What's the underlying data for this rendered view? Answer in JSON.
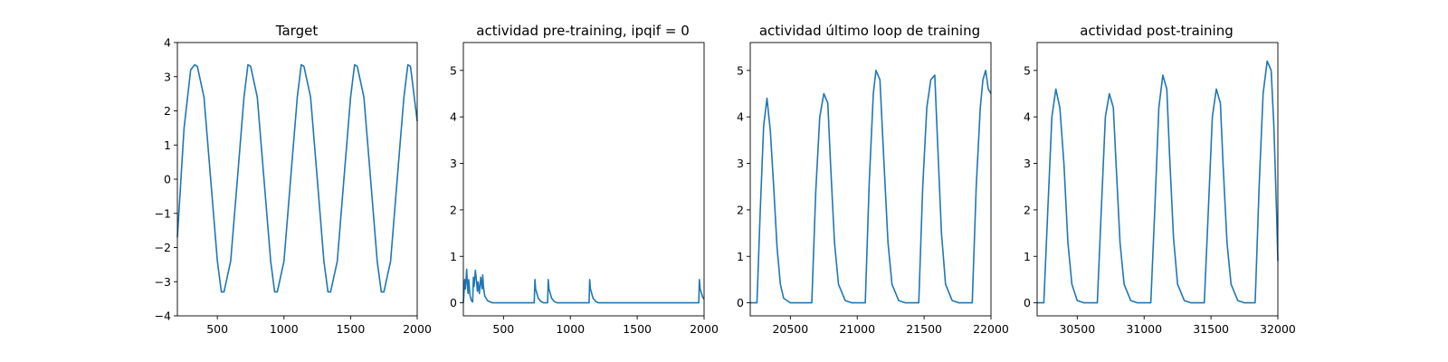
{
  "figure": {
    "background": "#ffffff",
    "line_color": "#1f77b4"
  },
  "chart_data": [
    {
      "type": "line",
      "title": "Target",
      "xlim": [
        200,
        2000
      ],
      "ylim": [
        -4,
        4
      ],
      "xticks": [
        500,
        1000,
        1500,
        2000
      ],
      "yticks": [
        -4,
        -3,
        -2,
        -1,
        0,
        1,
        2,
        3,
        4
      ],
      "ytick_labels": [
        "−4",
        "−3",
        "−2",
        "−1",
        "0",
        "1",
        "2",
        "3",
        "4"
      ],
      "series": [
        {
          "x": [
            200,
            250,
            300,
            330,
            350,
            400,
            450,
            500,
            530,
            550,
            600,
            650,
            700,
            730,
            750,
            800,
            850,
            900,
            930,
            950,
            1000,
            1050,
            1100,
            1130,
            1150,
            1200,
            1250,
            1300,
            1330,
            1350,
            1400,
            1450,
            1500,
            1530,
            1550,
            1600,
            1650,
            1700,
            1730,
            1750,
            1800,
            1850,
            1900,
            1930,
            1950,
            2000
          ],
          "y": [
            -1.7,
            1.5,
            3.2,
            3.35,
            3.3,
            2.4,
            0.0,
            -2.4,
            -3.3,
            -3.3,
            -2.4,
            0.0,
            2.4,
            3.35,
            3.3,
            2.4,
            0.0,
            -2.4,
            -3.3,
            -3.3,
            -2.4,
            0.0,
            2.4,
            3.35,
            3.3,
            2.4,
            0.0,
            -2.4,
            -3.3,
            -3.3,
            -2.4,
            0.0,
            2.4,
            3.35,
            3.3,
            2.4,
            0.0,
            -2.4,
            -3.3,
            -3.3,
            -2.4,
            0.0,
            2.4,
            3.35,
            3.3,
            1.7
          ]
        }
      ]
    },
    {
      "type": "line",
      "title": "actividad pre-training, ipqif = 0",
      "xlim": [
        200,
        2000
      ],
      "ylim": [
        -0.28,
        5.6
      ],
      "xticks": [
        500,
        1000,
        1500,
        2000
      ],
      "yticks": [
        0,
        1,
        2,
        3,
        4,
        5
      ],
      "series": [
        {
          "x": [
            200,
            210,
            215,
            225,
            230,
            235,
            240,
            250,
            260,
            270,
            275,
            280,
            290,
            300,
            305,
            310,
            320,
            330,
            340,
            345,
            350,
            360,
            380,
            400,
            420,
            730,
            735,
            740,
            760,
            780,
            800,
            830,
            835,
            840,
            860,
            880,
            900,
            1140,
            1145,
            1150,
            1170,
            1190,
            1210,
            1960,
            1965,
            1970,
            1990,
            2000
          ],
          "y": [
            0.0,
            0.5,
            0.3,
            0.72,
            0.4,
            0.2,
            0.5,
            0.15,
            0.05,
            0.02,
            0.55,
            0.35,
            0.7,
            0.4,
            0.25,
            0.45,
            0.2,
            0.55,
            0.3,
            0.6,
            0.35,
            0.15,
            0.05,
            0.02,
            0.0,
            0.0,
            0.5,
            0.3,
            0.1,
            0.03,
            0.0,
            0.0,
            0.5,
            0.3,
            0.1,
            0.03,
            0.0,
            0.0,
            0.5,
            0.3,
            0.1,
            0.03,
            0.0,
            0.0,
            0.5,
            0.3,
            0.12,
            0.08
          ]
        }
      ]
    },
    {
      "type": "line",
      "title": "actividad último loop de training",
      "xlim": [
        20200,
        22000
      ],
      "ylim": [
        -0.28,
        5.6
      ],
      "xticks": [
        20500,
        21000,
        21500,
        22000
      ],
      "yticks": [
        0,
        1,
        2,
        3,
        4,
        5
      ],
      "series": [
        {
          "x": [
            20200,
            20250,
            20275,
            20300,
            20325,
            20350,
            20375,
            20400,
            20425,
            20450,
            20500,
            20550,
            20660,
            20690,
            20720,
            20750,
            20780,
            20800,
            20830,
            20860,
            20910,
            20960,
            21060,
            21090,
            21120,
            21140,
            21170,
            21200,
            21230,
            21260,
            21310,
            21360,
            21460,
            21490,
            21520,
            21550,
            21580,
            21600,
            21630,
            21660,
            21710,
            21760,
            21860,
            21890,
            21920,
            21940,
            21960,
            21980,
            22000
          ],
          "y": [
            0.0,
            0.0,
            2.0,
            3.8,
            4.4,
            3.7,
            2.5,
            1.2,
            0.4,
            0.1,
            0.0,
            0.0,
            0.0,
            2.4,
            4.0,
            4.5,
            4.3,
            3.0,
            1.3,
            0.4,
            0.05,
            0.0,
            0.0,
            2.6,
            4.5,
            5.0,
            4.8,
            3.0,
            1.3,
            0.4,
            0.05,
            0.0,
            0.0,
            2.5,
            4.2,
            4.8,
            4.9,
            3.5,
            1.5,
            0.4,
            0.05,
            0.0,
            0.0,
            2.5,
            4.2,
            4.8,
            5.0,
            4.6,
            4.5
          ]
        }
      ]
    },
    {
      "type": "line",
      "title": "actividad post-training",
      "xlim": [
        30200,
        32000
      ],
      "ylim": [
        -0.28,
        5.6
      ],
      "xticks": [
        30500,
        31000,
        31500,
        32000
      ],
      "yticks": [
        0,
        1,
        2,
        3,
        4,
        5
      ],
      "series": [
        {
          "x": [
            30200,
            30250,
            30280,
            30310,
            30340,
            30370,
            30400,
            30430,
            30460,
            30500,
            30550,
            30650,
            30680,
            30710,
            30740,
            30770,
            30790,
            30820,
            30850,
            30900,
            30950,
            31050,
            31080,
            31110,
            31140,
            31170,
            31190,
            31220,
            31250,
            31300,
            31350,
            31450,
            31480,
            31510,
            31540,
            31570,
            31590,
            31620,
            31650,
            31700,
            31750,
            31830,
            31860,
            31890,
            31920,
            31950,
            31970,
            31990,
            32000
          ],
          "y": [
            0.0,
            0.0,
            2.0,
            4.0,
            4.6,
            4.2,
            3.0,
            1.3,
            0.4,
            0.05,
            0.0,
            0.0,
            2.0,
            4.0,
            4.5,
            4.2,
            3.0,
            1.3,
            0.4,
            0.05,
            0.0,
            0.0,
            2.0,
            4.2,
            4.9,
            4.6,
            3.2,
            1.4,
            0.4,
            0.05,
            0.0,
            0.0,
            2.0,
            4.0,
            4.6,
            4.3,
            3.0,
            1.3,
            0.4,
            0.05,
            0.0,
            0.0,
            2.5,
            4.5,
            5.2,
            5.0,
            3.8,
            2.0,
            0.9
          ]
        }
      ]
    }
  ]
}
